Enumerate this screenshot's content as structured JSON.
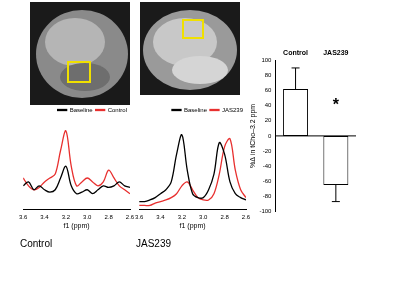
{
  "chart_data": [
    {
      "type": "line",
      "subtitle": "Control",
      "xlabel": "f1 (ppm)",
      "x": [
        3.6,
        3.55,
        3.5,
        3.45,
        3.4,
        3.35,
        3.3,
        3.25,
        3.2,
        3.15,
        3.1,
        3.05,
        3.0,
        2.95,
        2.9,
        2.85,
        2.8,
        2.75,
        2.7,
        2.65,
        2.6
      ],
      "series": [
        {
          "name": "Baseline",
          "color": "#000000",
          "values": [
            0.3,
            0.35,
            0.25,
            0.3,
            0.25,
            0.22,
            0.25,
            0.4,
            0.55,
            0.3,
            0.2,
            0.22,
            0.25,
            0.2,
            0.25,
            0.3,
            0.28,
            0.3,
            0.35,
            0.3,
            0.28
          ]
        },
        {
          "name": "Control",
          "color": "#e8302f",
          "values": [
            0.4,
            0.3,
            0.25,
            0.28,
            0.35,
            0.4,
            0.45,
            0.75,
            1.0,
            0.55,
            0.3,
            0.35,
            0.4,
            0.35,
            0.3,
            0.35,
            0.5,
            0.4,
            0.3,
            0.25,
            0.2
          ]
        }
      ],
      "xlim": [
        3.6,
        2.6
      ],
      "xticks": [
        3.6,
        3.4,
        3.2,
        {
          "value": 3,
          "label": "3.0"
        },
        2.8,
        2.6
      ],
      "ylim": [
        0,
        1.1
      ],
      "tick_labels": "x",
      "legend": "top-right",
      "grid": false
    },
    {
      "type": "line",
      "subtitle": "JAS239",
      "xlabel": "f1 (ppm)",
      "x": [
        3.6,
        3.55,
        3.5,
        3.45,
        3.4,
        3.35,
        3.3,
        3.25,
        3.2,
        3.15,
        3.1,
        3.05,
        3.0,
        2.95,
        2.9,
        2.85,
        2.8,
        2.75,
        2.7,
        2.65,
        2.6
      ],
      "series": [
        {
          "name": "Baseline",
          "color": "#000000",
          "values": [
            0.1,
            0.1,
            0.12,
            0.15,
            0.2,
            0.25,
            0.35,
            0.7,
            0.95,
            0.5,
            0.2,
            0.15,
            0.15,
            0.25,
            0.45,
            0.85,
            0.7,
            0.35,
            0.2,
            0.15,
            0.12
          ]
        },
        {
          "name": "JAS239",
          "color": "#e8302f",
          "values": [
            0.05,
            0.05,
            0.05,
            0.08,
            0.1,
            0.12,
            0.15,
            0.2,
            0.3,
            0.35,
            0.25,
            0.15,
            0.12,
            0.12,
            0.2,
            0.45,
            0.8,
            0.9,
            0.5,
            0.25,
            0.15
          ]
        }
      ],
      "xlim": [
        3.6,
        2.6
      ],
      "xticks": [
        3.6,
        3.4,
        3.2,
        {
          "value": 3,
          "label": "3.0"
        },
        2.8,
        2.6
      ],
      "ylim": [
        0,
        1.1
      ],
      "tick_labels": "x",
      "legend": "top-right",
      "grid": false
    },
    {
      "type": "bar",
      "categories": [
        "Control",
        "JAS239"
      ],
      "values": [
        62,
        -65
      ],
      "errors": [
        28,
        22
      ],
      "color": "#ffffff",
      "ylabel": "%Δ in tCho–3.2 ppm",
      "ylim": [
        -100,
        100
      ],
      "yticks": [
        -100,
        -80,
        -60,
        -40,
        -20,
        0,
        20,
        40,
        60,
        80,
        100
      ],
      "grid": false,
      "annotations": [
        {
          "text": "*",
          "x": "JAS239",
          "y": 40
        }
      ]
    }
  ]
}
